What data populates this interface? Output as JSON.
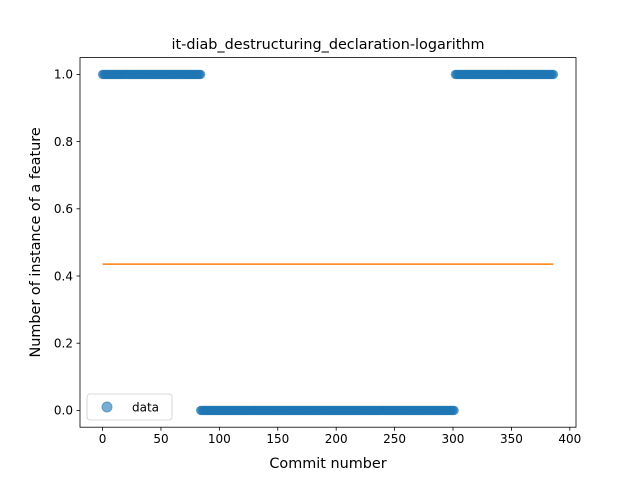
{
  "chart_data": {
    "type": "scatter",
    "title": "it-diab_destructuring_declaration-logarithm",
    "xlabel": "Commit number",
    "ylabel": "Number of instance of a feature",
    "xlim": [
      -19.3,
      405.3
    ],
    "ylim": [
      -0.05,
      1.05
    ],
    "xticks": [
      0,
      50,
      100,
      150,
      200,
      250,
      300,
      350,
      400
    ],
    "xtick_labels": [
      "0",
      "50",
      "100",
      "150",
      "200",
      "250",
      "300",
      "350",
      "400"
    ],
    "yticks": [
      0.0,
      0.2,
      0.4,
      0.6,
      0.8,
      1.0
    ],
    "ytick_labels": [
      "0.0",
      "0.2",
      "0.4",
      "0.6",
      "0.8",
      "1.0"
    ],
    "grid": false,
    "legend_position": "lower left",
    "series": [
      {
        "name": "data",
        "kind": "scatter",
        "color": "#1f77b4",
        "alpha": 0.6,
        "segments": [
          {
            "x_start": 0,
            "x_end": 84,
            "y": 1.0
          },
          {
            "x_start": 84,
            "x_end": 301,
            "y": 0.0
          },
          {
            "x_start": 302,
            "x_end": 386,
            "y": 1.0
          }
        ]
      },
      {
        "kind": "line",
        "color": "#ff7f0e",
        "x": [
          0,
          386
        ],
        "y": [
          0.4352,
          0.4352
        ]
      }
    ]
  }
}
